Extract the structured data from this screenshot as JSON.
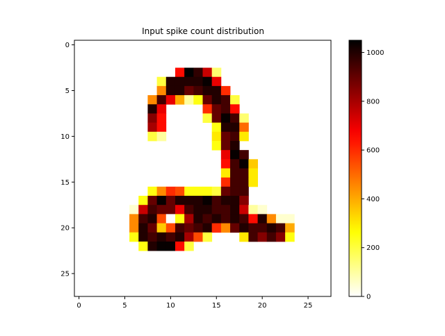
{
  "chart_data": {
    "type": "heatmap",
    "title": "Input spike count distribution",
    "rows": 28,
    "cols": 28,
    "x_ticks": [
      0,
      5,
      10,
      15,
      20,
      25
    ],
    "y_ticks": [
      0,
      5,
      10,
      15,
      20,
      25
    ],
    "x_range": [
      -0.5,
      27.5
    ],
    "y_range": [
      -0.5,
      27.5
    ],
    "y_inverted": true,
    "colormap": "hot_r",
    "color_range": [
      0,
      1050
    ],
    "colorbar_ticks": [
      0,
      200,
      400,
      600,
      800,
      1000
    ],
    "cells": [
      [
        3,
        11,
        650
      ],
      [
        3,
        12,
        1050
      ],
      [
        3,
        13,
        980
      ],
      [
        3,
        14,
        750
      ],
      [
        3,
        15,
        150
      ],
      [
        4,
        9,
        200
      ],
      [
        4,
        10,
        1000
      ],
      [
        4,
        11,
        1000
      ],
      [
        4,
        12,
        1000
      ],
      [
        4,
        13,
        1000
      ],
      [
        4,
        14,
        1040
      ],
      [
        4,
        15,
        700
      ],
      [
        5,
        9,
        450
      ],
      [
        5,
        10,
        1000
      ],
      [
        5,
        11,
        1000
      ],
      [
        5,
        12,
        900
      ],
      [
        5,
        13,
        950
      ],
      [
        5,
        14,
        1000
      ],
      [
        5,
        15,
        1000
      ],
      [
        5,
        16,
        600
      ],
      [
        6,
        8,
        450
      ],
      [
        6,
        9,
        950
      ],
      [
        6,
        10,
        700
      ],
      [
        6,
        11,
        400
      ],
      [
        6,
        12,
        100
      ],
      [
        6,
        13,
        250
      ],
      [
        6,
        14,
        900
      ],
      [
        6,
        15,
        1000
      ],
      [
        6,
        16,
        950
      ],
      [
        6,
        17,
        200
      ],
      [
        7,
        8,
        1000
      ],
      [
        7,
        9,
        700
      ],
      [
        7,
        14,
        600
      ],
      [
        7,
        15,
        900
      ],
      [
        7,
        16,
        950
      ],
      [
        7,
        17,
        650
      ],
      [
        8,
        8,
        850
      ],
      [
        8,
        9,
        650
      ],
      [
        8,
        14,
        200
      ],
      [
        8,
        15,
        900
      ],
      [
        8,
        16,
        1040
      ],
      [
        8,
        17,
        950
      ],
      [
        8,
        18,
        150
      ],
      [
        9,
        8,
        800
      ],
      [
        9,
        9,
        650
      ],
      [
        9,
        15,
        250
      ],
      [
        9,
        16,
        1000
      ],
      [
        9,
        17,
        1000
      ],
      [
        9,
        18,
        500
      ],
      [
        10,
        8,
        200
      ],
      [
        10,
        9,
        100
      ],
      [
        10,
        15,
        300
      ],
      [
        10,
        16,
        900
      ],
      [
        10,
        17,
        950
      ],
      [
        10,
        18,
        300
      ],
      [
        11,
        15,
        250
      ],
      [
        11,
        16,
        900
      ],
      [
        11,
        17,
        1000
      ],
      [
        12,
        16,
        700
      ],
      [
        12,
        17,
        1040
      ],
      [
        12,
        18,
        950
      ],
      [
        13,
        16,
        650
      ],
      [
        13,
        17,
        950
      ],
      [
        13,
        18,
        1040
      ],
      [
        13,
        19,
        350
      ],
      [
        14,
        16,
        300
      ],
      [
        14,
        17,
        950
      ],
      [
        14,
        18,
        950
      ],
      [
        14,
        19,
        300
      ],
      [
        15,
        16,
        600
      ],
      [
        15,
        17,
        950
      ],
      [
        15,
        18,
        950
      ],
      [
        15,
        19,
        300
      ],
      [
        16,
        8,
        250
      ],
      [
        16,
        9,
        450
      ],
      [
        16,
        10,
        600
      ],
      [
        16,
        11,
        550
      ],
      [
        16,
        12,
        250
      ],
      [
        16,
        13,
        250
      ],
      [
        16,
        14,
        250
      ],
      [
        16,
        15,
        200
      ],
      [
        16,
        16,
        900
      ],
      [
        16,
        17,
        950
      ],
      [
        16,
        18,
        950
      ],
      [
        17,
        7,
        250
      ],
      [
        17,
        8,
        900
      ],
      [
        17,
        9,
        1040
      ],
      [
        17,
        10,
        900
      ],
      [
        17,
        11,
        1000
      ],
      [
        17,
        12,
        1000
      ],
      [
        17,
        13,
        1000
      ],
      [
        17,
        14,
        1040
      ],
      [
        17,
        15,
        950
      ],
      [
        17,
        16,
        1000
      ],
      [
        17,
        17,
        1000
      ],
      [
        17,
        18,
        850
      ],
      [
        18,
        6,
        50
      ],
      [
        18,
        7,
        750
      ],
      [
        18,
        8,
        950
      ],
      [
        18,
        9,
        900
      ],
      [
        18,
        10,
        900
      ],
      [
        18,
        11,
        700
      ],
      [
        18,
        12,
        950
      ],
      [
        18,
        13,
        1000
      ],
      [
        18,
        14,
        1000
      ],
      [
        18,
        15,
        950
      ],
      [
        18,
        16,
        950
      ],
      [
        18,
        17,
        1000
      ],
      [
        18,
        18,
        750
      ],
      [
        18,
        19,
        100
      ],
      [
        18,
        20,
        50
      ],
      [
        19,
        6,
        450
      ],
      [
        19,
        7,
        950
      ],
      [
        19,
        8,
        1000
      ],
      [
        19,
        9,
        550
      ],
      [
        19,
        10,
        0
      ],
      [
        19,
        11,
        250
      ],
      [
        19,
        12,
        800
      ],
      [
        19,
        13,
        1000
      ],
      [
        19,
        14,
        950
      ],
      [
        19,
        15,
        1000
      ],
      [
        19,
        16,
        950
      ],
      [
        19,
        17,
        1000
      ],
      [
        19,
        18,
        950
      ],
      [
        19,
        19,
        650
      ],
      [
        19,
        20,
        1000
      ],
      [
        19,
        21,
        450
      ],
      [
        19,
        22,
        50
      ],
      [
        19,
        23,
        50
      ],
      [
        20,
        6,
        450
      ],
      [
        20,
        7,
        1000
      ],
      [
        20,
        8,
        900
      ],
      [
        20,
        9,
        350
      ],
      [
        20,
        10,
        550
      ],
      [
        20,
        11,
        950
      ],
      [
        20,
        12,
        900
      ],
      [
        20,
        13,
        950
      ],
      [
        20,
        14,
        1000
      ],
      [
        20,
        15,
        600
      ],
      [
        20,
        16,
        450
      ],
      [
        20,
        17,
        900
      ],
      [
        20,
        18,
        1000
      ],
      [
        20,
        19,
        950
      ],
      [
        20,
        20,
        950
      ],
      [
        20,
        21,
        1000
      ],
      [
        20,
        22,
        950
      ],
      [
        20,
        23,
        400
      ],
      [
        21,
        6,
        250
      ],
      [
        21,
        7,
        1000
      ],
      [
        21,
        8,
        950
      ],
      [
        21,
        9,
        1000
      ],
      [
        21,
        10,
        950
      ],
      [
        21,
        11,
        1000
      ],
      [
        21,
        12,
        800
      ],
      [
        21,
        13,
        550
      ],
      [
        21,
        14,
        200
      ],
      [
        21,
        18,
        300
      ],
      [
        21,
        19,
        950
      ],
      [
        21,
        20,
        850
      ],
      [
        21,
        21,
        950
      ],
      [
        21,
        22,
        850
      ],
      [
        21,
        23,
        250
      ],
      [
        22,
        7,
        250
      ],
      [
        22,
        8,
        1000
      ],
      [
        22,
        9,
        1040
      ],
      [
        22,
        10,
        1040
      ],
      [
        22,
        11,
        650
      ],
      [
        22,
        12,
        200
      ]
    ]
  }
}
